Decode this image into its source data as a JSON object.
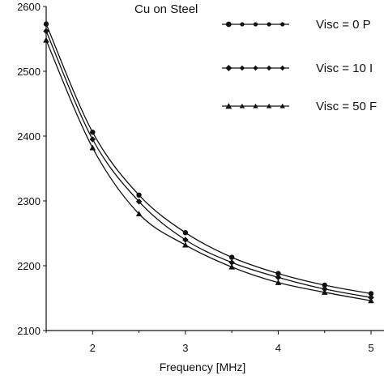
{
  "chart_data": {
    "type": "line",
    "title": "Cu on Steel",
    "xlabel": "Frequency [MHz]",
    "ylabel": "",
    "xlim": [
      1.5,
      5.0
    ],
    "ylim": [
      2100,
      2600
    ],
    "x_ticks": [
      2,
      3,
      4,
      5
    ],
    "x_tick_labels": [
      "2",
      "3",
      "4",
      "5"
    ],
    "y_ticks": [
      2100,
      2200,
      2300,
      2400,
      2500,
      2600
    ],
    "y_tick_labels": [
      "2100",
      "2200",
      "2300",
      "2400",
      "2500",
      "2600"
    ],
    "legend_position": "top-right",
    "x": [
      1.5,
      2.0,
      2.5,
      3.0,
      3.5,
      4.0,
      4.5,
      5.0
    ],
    "series": [
      {
        "name": "Visc = 0 P",
        "marker": "circle",
        "values": [
          2573,
          2406,
          2309,
          2251,
          2213,
          2188,
          2170,
          2157
        ]
      },
      {
        "name": "Visc = 10 I",
        "marker": "diamond",
        "values": [
          2562,
          2395,
          2299,
          2240,
          2205,
          2182,
          2164,
          2151
        ]
      },
      {
        "name": "Visc = 50 F",
        "marker": "triangle",
        "values": [
          2548,
          2382,
          2280,
          2232,
          2198,
          2174,
          2159,
          2146
        ]
      }
    ]
  }
}
